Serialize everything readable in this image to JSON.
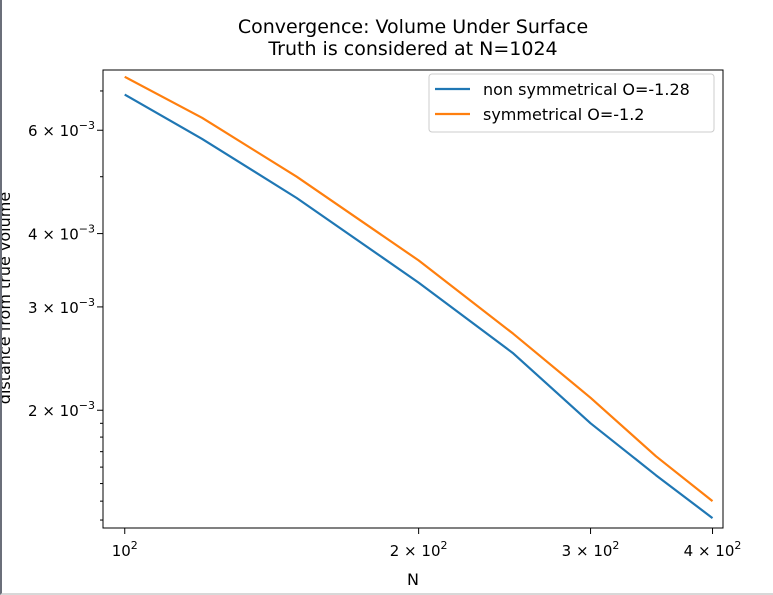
{
  "chart_data": {
    "type": "line",
    "title": "Convergence: Volume Under Surface",
    "subtitle": "Truth is considered at N=1024",
    "xlabel": "N",
    "ylabel": "distance from true volume",
    "xscale": "log",
    "yscale": "log",
    "xlim": [
      95,
      410
    ],
    "ylim": [
      0.00126,
      0.0076
    ],
    "grid": false,
    "legend_position": "upper-right",
    "x_ticks": [
      {
        "value": 100,
        "label": "10",
        "sup": "2"
      },
      {
        "value": 200,
        "label": "2 × 10",
        "sup": "2"
      },
      {
        "value": 300,
        "label": "3 × 10",
        "sup": "2"
      },
      {
        "value": 400,
        "label": "4 × 10",
        "sup": "2"
      }
    ],
    "y_ticks": [
      {
        "value": 0.006,
        "label": "6 × 10",
        "sup": "−3"
      },
      {
        "value": 0.004,
        "label": "4 × 10",
        "sup": "−3"
      },
      {
        "value": 0.003,
        "label": "3 × 10",
        "sup": "−3"
      },
      {
        "value": 0.002,
        "label": "2 × 10",
        "sup": "−3"
      }
    ],
    "x": [
      100,
      120,
      150,
      200,
      250,
      300,
      350,
      400
    ],
    "series": [
      {
        "name": "non symmetrical O=-1.28",
        "color": "#1f77b4",
        "values": [
          0.0069,
          0.0058,
          0.0046,
          0.0033,
          0.0025,
          0.0019,
          0.00155,
          0.00131
        ]
      },
      {
        "name": "symmetrical O=-1.2",
        "color": "#ff7f0e",
        "values": [
          0.0074,
          0.0063,
          0.005,
          0.0036,
          0.0027,
          0.0021,
          0.00167,
          0.0014
        ]
      }
    ]
  }
}
